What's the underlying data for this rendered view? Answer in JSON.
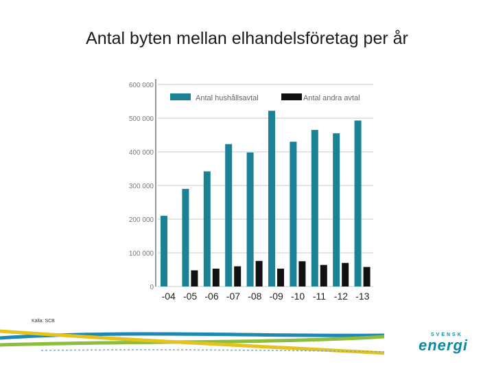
{
  "title": "Antal byten mellan elhandelsföretag per år",
  "source": "Källa: SCB",
  "logo": {
    "top": "SVENSK",
    "main": "energi"
  },
  "chart_data": {
    "type": "bar",
    "categories": [
      "-04",
      "-05",
      "-06",
      "-07",
      "-08",
      "-09",
      "-10",
      "-11",
      "-12",
      "-13"
    ],
    "series": [
      {
        "name": "Antal hushållsavtal",
        "color": "#1b8296",
        "values": [
          210000,
          290000,
          342000,
          423000,
          398000,
          522000,
          430000,
          465000,
          455000,
          493000
        ]
      },
      {
        "name": "Antal andra avtal",
        "color": "#111111",
        "values": [
          null,
          48000,
          53000,
          60000,
          76000,
          53000,
          75000,
          64000,
          70000,
          58000
        ]
      }
    ],
    "y_ticks": [
      "600 000",
      "500 000",
      "400 000",
      "300 000",
      "200 000",
      "100 000",
      "0"
    ],
    "ylim": [
      0,
      600000
    ],
    "grid": true,
    "legend_position": "top"
  },
  "colors": {
    "teal": "#1b8296",
    "black": "#111111",
    "grid": "#c8c8c8",
    "swoosh_blue": "#1e88b4",
    "swoosh_green": "#8cbd3c",
    "swoosh_yellow": "#e6c21f"
  }
}
